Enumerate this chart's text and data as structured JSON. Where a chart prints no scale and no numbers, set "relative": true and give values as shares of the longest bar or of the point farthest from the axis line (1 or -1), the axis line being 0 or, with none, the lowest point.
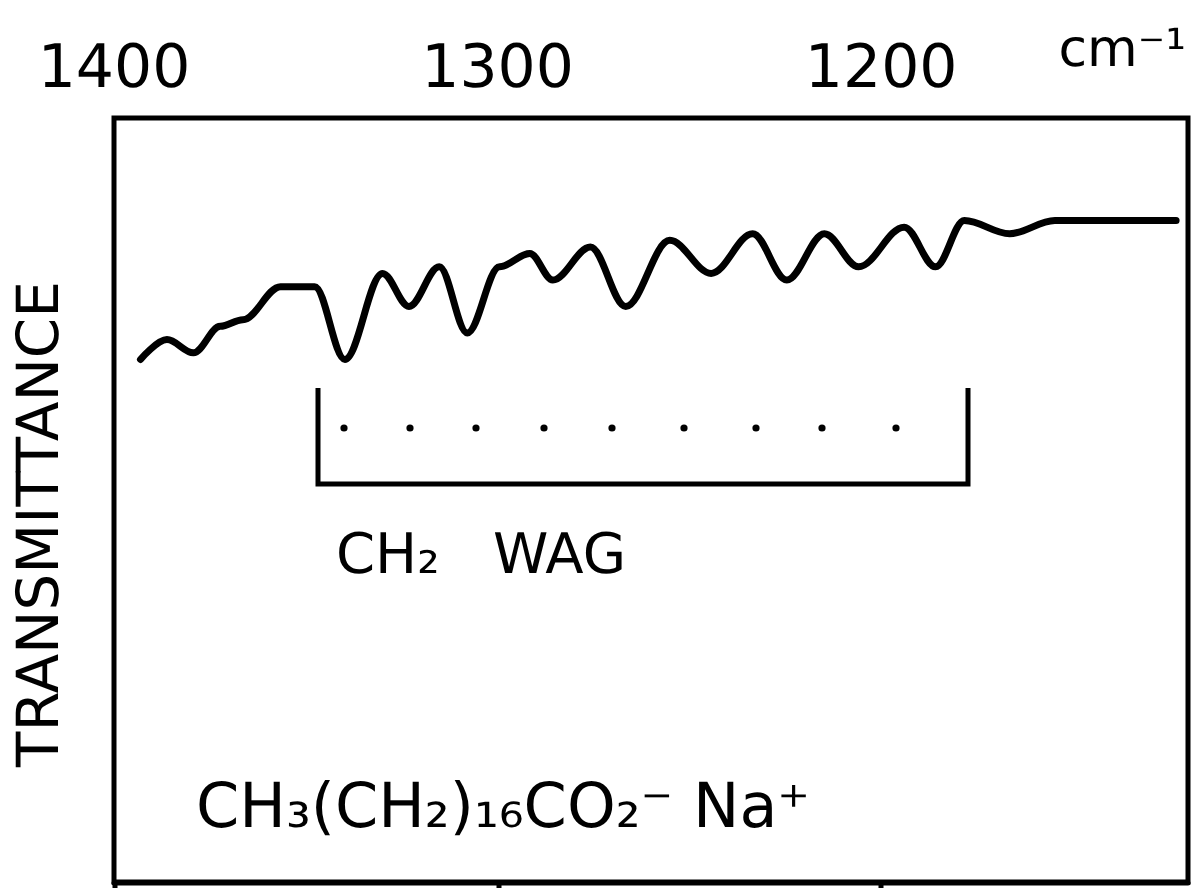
{
  "chart_data": {
    "type": "line",
    "relative": true,
    "ylabel": "TRANSMITTANCE",
    "xlabel": "cm⁻¹",
    "xlim": [
      1400,
      1120
    ],
    "xticks": [
      1400,
      1300,
      1200
    ],
    "marker": "none",
    "grid": false,
    "x": [
      1393.1,
      1386.2,
      1379.3,
      1372.3,
      1366.4,
      1356.6,
      1347.7,
      1339.8,
      1330.0,
      1323.1,
      1315.2,
      1307.9,
      1299.5,
      1291.6,
      1285.6,
      1275.8,
      1266.6,
      1255.1,
      1244.3,
      1233.5,
      1224.6,
      1214.8,
      1205.9,
      1194.0,
      1185.8,
      1178.3,
      1166.5,
      1154.7,
      1123.1
    ],
    "series": [
      {
        "color": "#000000",
        "values": [
          0.79,
          0.82,
          0.8,
          0.84,
          0.85,
          0.9,
          0.9,
          0.79,
          0.92,
          0.87,
          0.93,
          0.83,
          0.93,
          0.95,
          0.91,
          0.96,
          0.87,
          0.97,
          0.92,
          0.98,
          0.91,
          0.98,
          0.93,
          0.99,
          0.93,
          1.0,
          0.98,
          1.0,
          1.0
        ]
      }
    ],
    "annotations": [
      "CH₂   WAG",
      "CH₃(CH₂)₁₆CO₂⁻ Na⁺"
    ]
  }
}
